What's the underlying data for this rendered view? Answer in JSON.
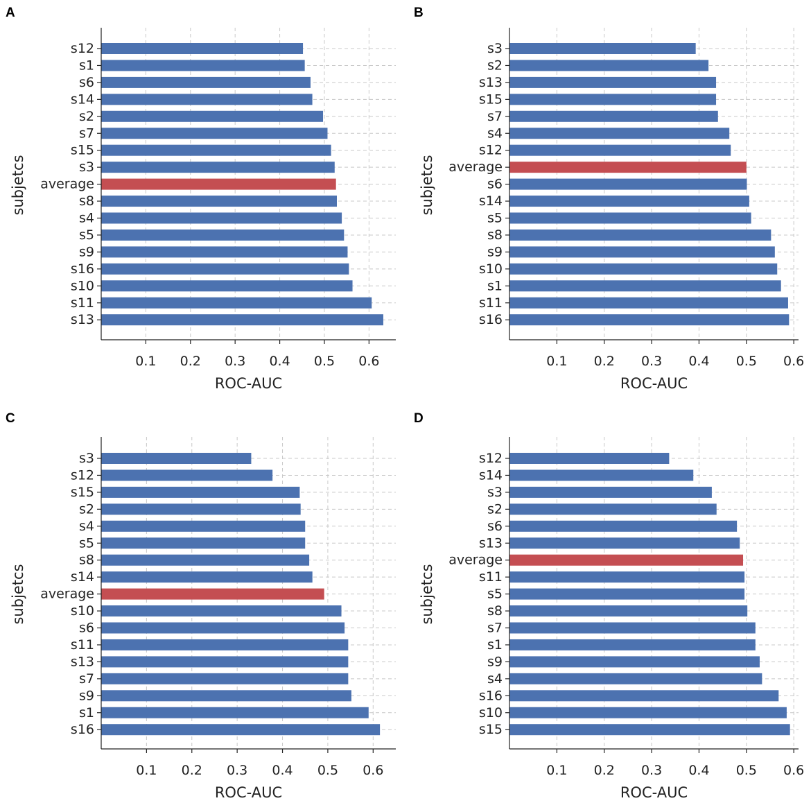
{
  "colors": {
    "bar": "#4c72b0",
    "highlight": "#c44e52"
  },
  "chart_data": [
    {
      "type": "bar",
      "orientation": "horizontal",
      "panel_label": "A",
      "title": "",
      "xlabel": "ROC-AUC",
      "ylabel": "subjetcs",
      "xlim": [
        0,
        0.66
      ],
      "xticks": [
        0.1,
        0.2,
        0.3,
        0.4,
        0.5,
        0.6
      ],
      "xtick_labels": [
        "0.1",
        "0.2",
        "0.3",
        "0.4",
        "0.5",
        "0.6"
      ],
      "grid": true,
      "highlight_category": "average",
      "categories": [
        "s12",
        "s1",
        "s6",
        "s14",
        "s2",
        "s7",
        "s15",
        "s3",
        "average",
        "s8",
        "s4",
        "s5",
        "s9",
        "s16",
        "s10",
        "s11",
        "s13"
      ],
      "values": [
        0.452,
        0.456,
        0.469,
        0.473,
        0.497,
        0.507,
        0.515,
        0.523,
        0.526,
        0.528,
        0.539,
        0.544,
        0.552,
        0.555,
        0.563,
        0.606,
        0.632
      ]
    },
    {
      "type": "bar",
      "orientation": "horizontal",
      "panel_label": "B",
      "title": "",
      "xlabel": "ROC-AUC",
      "ylabel": "subjetcs",
      "xlim": [
        0,
        0.61
      ],
      "xticks": [
        0.1,
        0.2,
        0.3,
        0.4,
        0.5,
        0.6
      ],
      "xtick_labels": [
        "0.1",
        "0.2",
        "0.3",
        "0.4",
        "0.5",
        "0.6"
      ],
      "grid": true,
      "highlight_category": "average",
      "categories": [
        "s3",
        "s2",
        "s13",
        "s15",
        "s7",
        "s4",
        "s12",
        "average",
        "s6",
        "s14",
        "s5",
        "s8",
        "s9",
        "s10",
        "s1",
        "s11",
        "s16"
      ],
      "values": [
        0.393,
        0.42,
        0.436,
        0.436,
        0.44,
        0.464,
        0.467,
        0.5,
        0.501,
        0.506,
        0.51,
        0.552,
        0.56,
        0.565,
        0.573,
        0.588,
        0.59
      ]
    },
    {
      "type": "bar",
      "orientation": "horizontal",
      "panel_label": "C",
      "title": "",
      "xlabel": "ROC-AUC",
      "ylabel": "subjetcs",
      "xlim": [
        0,
        0.65
      ],
      "xticks": [
        0.1,
        0.2,
        0.3,
        0.4,
        0.5,
        0.6
      ],
      "xtick_labels": [
        "0.1",
        "0.2",
        "0.3",
        "0.4",
        "0.5",
        "0.6"
      ],
      "grid": true,
      "highlight_category": "average",
      "categories": [
        "s3",
        "s12",
        "s15",
        "s2",
        "s4",
        "s5",
        "s8",
        "s14",
        "average",
        "s10",
        "s6",
        "s11",
        "s13",
        "s7",
        "s9",
        "s1",
        "s16"
      ],
      "values": [
        0.331,
        0.378,
        0.438,
        0.44,
        0.45,
        0.45,
        0.459,
        0.466,
        0.492,
        0.53,
        0.537,
        0.545,
        0.545,
        0.545,
        0.552,
        0.59,
        0.615
      ]
    },
    {
      "type": "bar",
      "orientation": "horizontal",
      "panel_label": "D",
      "title": "",
      "xlabel": "ROC-AUC",
      "ylabel": "subjetcs",
      "xlim": [
        0,
        0.61
      ],
      "xticks": [
        0.1,
        0.2,
        0.3,
        0.4,
        0.5,
        0.6
      ],
      "xtick_labels": [
        "0.1",
        "0.2",
        "0.3",
        "0.4",
        "0.5",
        "0.6"
      ],
      "grid": true,
      "highlight_category": "average",
      "categories": [
        "s12",
        "s14",
        "s3",
        "s2",
        "s6",
        "s13",
        "average",
        "s11",
        "s5",
        "s8",
        "s7",
        "s1",
        "s9",
        "s4",
        "s16",
        "s10",
        "s15"
      ],
      "values": [
        0.337,
        0.388,
        0.427,
        0.437,
        0.48,
        0.486,
        0.493,
        0.496,
        0.496,
        0.502,
        0.519,
        0.519,
        0.528,
        0.533,
        0.568,
        0.585,
        0.592
      ]
    }
  ]
}
